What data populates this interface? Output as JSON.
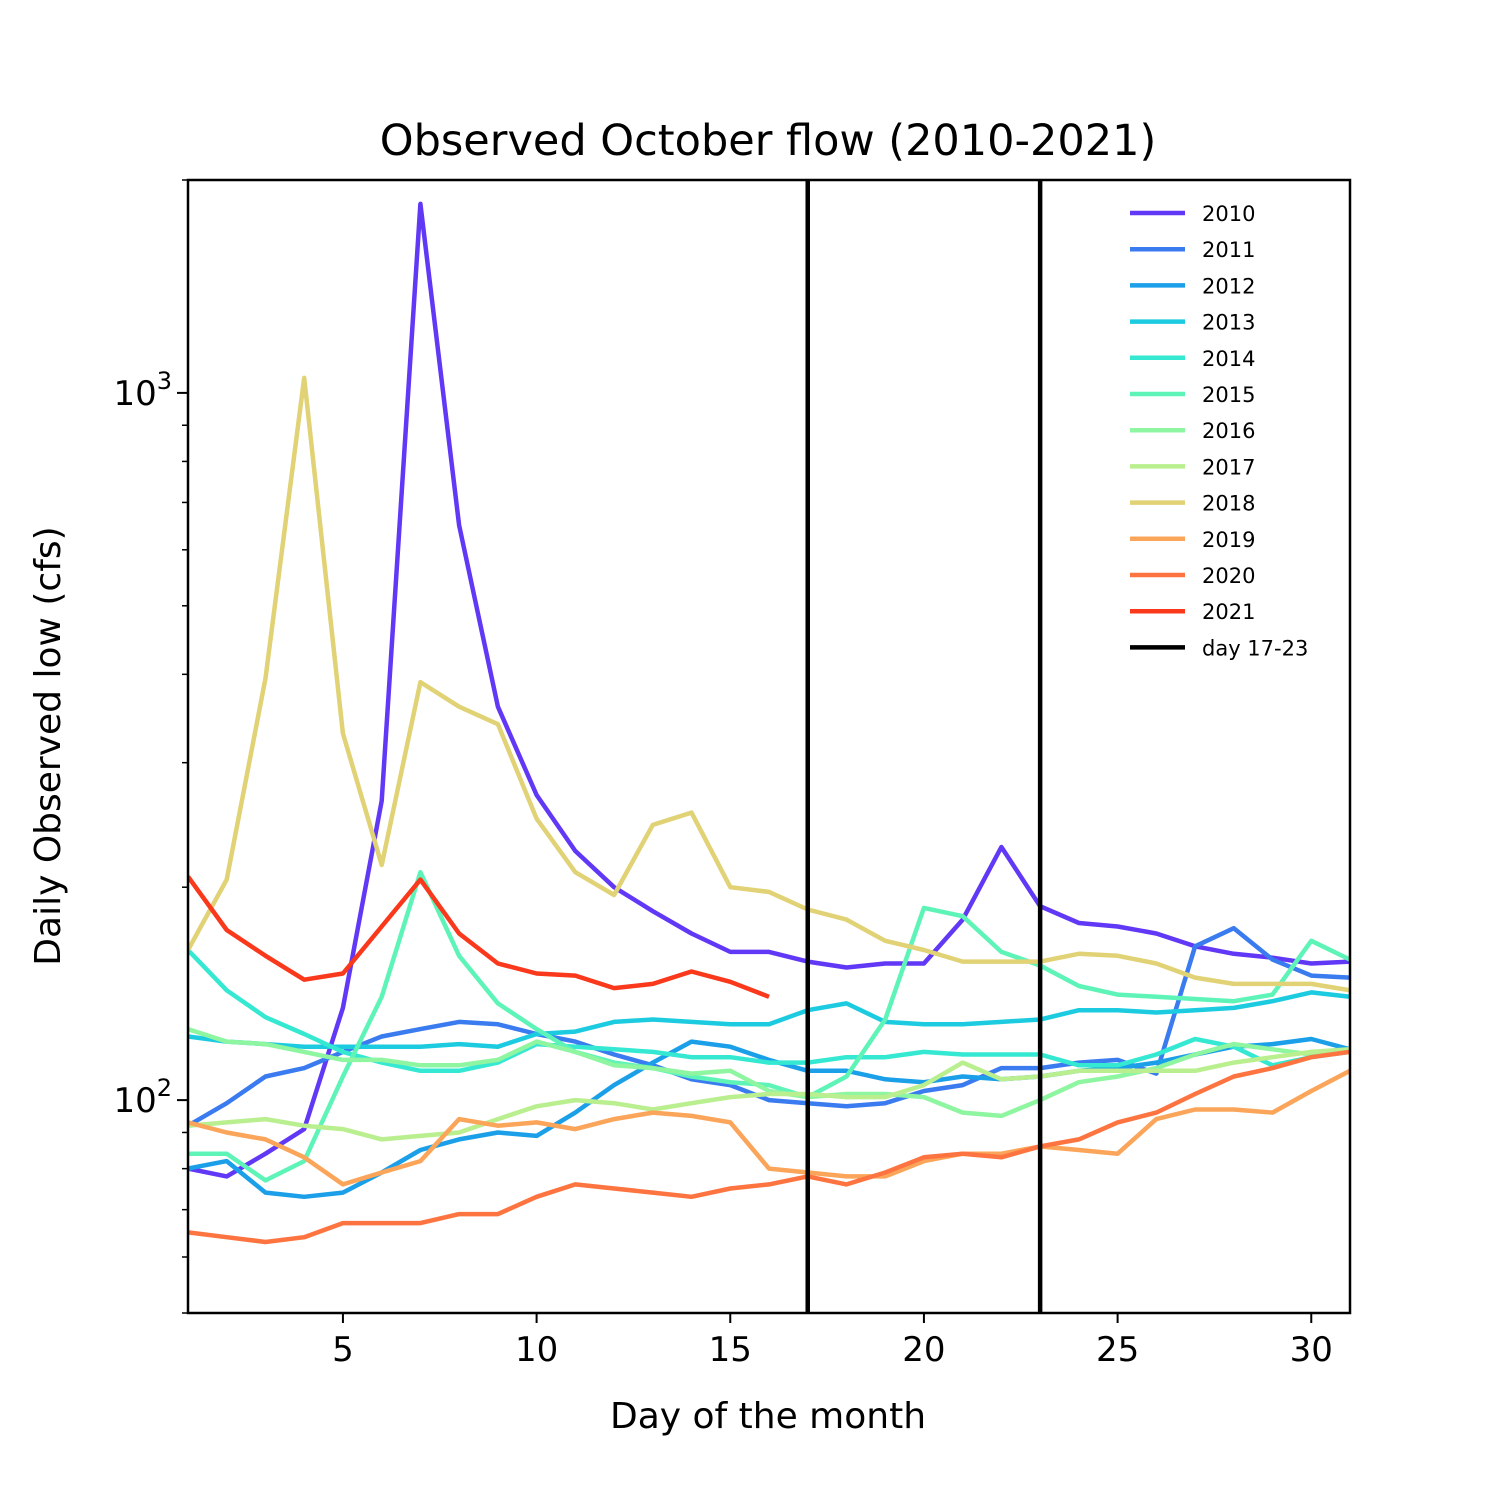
{
  "chart_data": {
    "type": "line",
    "title": "Observed October flow (2010-2021)",
    "xlabel": "Day of the month",
    "ylabel": "Daily Observed low (cfs)",
    "xlim": [
      1,
      31
    ],
    "ylim": [
      50,
      2000
    ],
    "yscale": "log",
    "xticks": [
      5,
      10,
      15,
      20,
      25,
      30
    ],
    "yticks_major": [
      {
        "value": 100,
        "base": "10",
        "exp": "2"
      },
      {
        "value": 1000,
        "base": "10",
        "exp": "3"
      }
    ],
    "vlines": [
      17,
      23
    ],
    "legend": {
      "placement": "upper-right",
      "frame": false
    },
    "series": [
      {
        "name": "2010",
        "color": "#6038f6",
        "start": 1,
        "values": [
          80,
          78,
          84,
          91,
          135,
          265,
          1850,
          650,
          360,
          270,
          225,
          200,
          185,
          172,
          162,
          162,
          157,
          154,
          156,
          156,
          180,
          228,
          188,
          178,
          176,
          172,
          165,
          161,
          159,
          156,
          157
        ]
      },
      {
        "name": "2011",
        "color": "#3a7bf0",
        "start": 1,
        "values": [
          92,
          99,
          108,
          111,
          117,
          123,
          126,
          129,
          128,
          124,
          121,
          116,
          112,
          107,
          105,
          100,
          99,
          98,
          99,
          103,
          105,
          111,
          111,
          113,
          114,
          109,
          165,
          175,
          158,
          150,
          149
        ]
      },
      {
        "name": "2012",
        "color": "#1a9fe8",
        "start": 1,
        "values": [
          80,
          82,
          74,
          73,
          74,
          79,
          85,
          88,
          90,
          89,
          96,
          105,
          113,
          121,
          119,
          114,
          110,
          110,
          107,
          106,
          108,
          107,
          108,
          110,
          111,
          113,
          116,
          119,
          120,
          122,
          118
        ]
      },
      {
        "name": "2013",
        "color": "#1ccbe0",
        "start": 1,
        "values": [
          123,
          121,
          120,
          119,
          119,
          119,
          119,
          120,
          119,
          124,
          125,
          129,
          130,
          129,
          128,
          128,
          134,
          137,
          129,
          128,
          128,
          129,
          130,
          134,
          134,
          133,
          134,
          135,
          138,
          142,
          140
        ]
      },
      {
        "name": "2014",
        "color": "#35e8d2",
        "start": 1,
        "values": [
          163,
          143,
          131,
          124,
          117,
          113,
          110,
          110,
          113,
          120,
          119,
          118,
          117,
          115,
          115,
          113,
          113,
          115,
          115,
          117,
          116,
          116,
          116,
          112,
          112,
          116,
          122,
          119,
          112,
          115,
          117
        ]
      },
      {
        "name": "2015",
        "color": "#5ef4b8",
        "start": 1,
        "values": [
          84,
          84,
          77,
          82,
          108,
          140,
          210,
          160,
          137,
          126,
          117,
          113,
          111,
          108,
          106,
          105,
          101,
          108,
          130,
          187,
          182,
          162,
          155,
          145,
          141,
          140,
          139,
          138,
          141,
          168,
          158
        ]
      },
      {
        "name": "2016",
        "color": "#8ef5a0",
        "start": 1,
        "values": [
          126,
          121,
          120,
          117,
          114,
          114,
          112,
          112,
          114,
          121,
          117,
          112,
          111,
          109,
          110,
          103,
          101,
          102,
          102,
          101,
          96,
          95,
          100,
          106,
          108,
          111,
          116,
          120,
          118,
          116,
          117
        ]
      },
      {
        "name": "2017",
        "color": "#b9ef8e",
        "start": 1,
        "values": [
          92,
          93,
          94,
          92,
          91,
          88,
          89,
          90,
          94,
          98,
          100,
          99,
          97,
          99,
          101,
          102,
          102,
          101,
          101,
          105,
          113,
          107,
          108,
          110,
          110,
          110,
          110,
          113,
          115,
          117,
          118
        ]
      },
      {
        "name": "2018",
        "color": "#e0d275",
        "start": 1,
        "values": [
          163,
          205,
          395,
          1050,
          330,
          215,
          390,
          360,
          340,
          250,
          210,
          195,
          245,
          255,
          200,
          197,
          186,
          180,
          168,
          163,
          157,
          157,
          157,
          161,
          160,
          156,
          149,
          146,
          146,
          146,
          143
        ]
      },
      {
        "name": "2019",
        "color": "#fba55a",
        "start": 1,
        "values": [
          93,
          90,
          88,
          83,
          76,
          79,
          82,
          94,
          92,
          93,
          91,
          94,
          96,
          95,
          93,
          80,
          79,
          78,
          78,
          82,
          84,
          84,
          86,
          85,
          84,
          94,
          97,
          97,
          96,
          103,
          110
        ]
      },
      {
        "name": "2020",
        "color": "#fd7440",
        "start": 1,
        "values": [
          65,
          64,
          63,
          64,
          67,
          67,
          67,
          69,
          69,
          73,
          76,
          75,
          74,
          73,
          75,
          76,
          78,
          76,
          79,
          83,
          84,
          83,
          86,
          88,
          93,
          96,
          102,
          108,
          111,
          115,
          117
        ]
      },
      {
        "name": "2021",
        "color": "#f9381c",
        "start": 1,
        "values": [
          207,
          174,
          160,
          148,
          151,
          176,
          205,
          172,
          156,
          151,
          150,
          144,
          146,
          152,
          147,
          140
        ]
      },
      {
        "name": "day 17-23",
        "color": "#000000",
        "legend_only": true
      }
    ]
  }
}
